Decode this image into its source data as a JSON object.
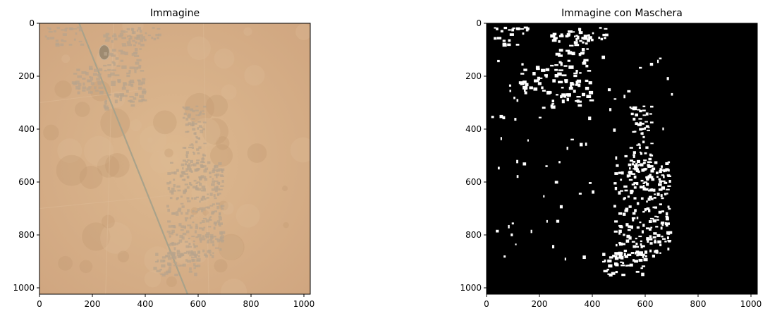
{
  "figure": {
    "panels": [
      {
        "title": "Immagine"
      },
      {
        "title": "Immagine con Maschera"
      }
    ]
  },
  "colors": {
    "sand": "#d6ad86",
    "sand_light": "#ddba95",
    "sand_dark": "#c49a73",
    "road": "#a9a28a",
    "built": "#b8a48c",
    "mask_bg": "#000000",
    "mask_fg": "#ffffff"
  },
  "chart_data": [
    {
      "type": "image",
      "title": "Immagine",
      "content": "satellite RGB image of desert terrain with settlement and diagonal road",
      "xlim": [
        0,
        1024
      ],
      "ylim": [
        1024,
        0
      ],
      "xticks": [
        0,
        200,
        400,
        600,
        800,
        1000
      ],
      "yticks": [
        0,
        200,
        400,
        600,
        800,
        1000
      ],
      "xtick_labels": [
        "0",
        "200",
        "400",
        "600",
        "800",
        "1000"
      ],
      "ytick_labels": [
        "0",
        "200",
        "400",
        "600",
        "800",
        "1000"
      ]
    },
    {
      "type": "image",
      "title": "Immagine con Maschera",
      "content": "binary building mask, white buildings on black background",
      "xlim": [
        0,
        1024
      ],
      "ylim": [
        1024,
        0
      ],
      "xticks": [
        0,
        200,
        400,
        600,
        800,
        1000
      ],
      "yticks": [
        0,
        200,
        400,
        600,
        800,
        1000
      ],
      "xtick_labels": [
        "0",
        "200",
        "400",
        "600",
        "800",
        "1000"
      ],
      "ytick_labels": [
        "0",
        "200",
        "400",
        "600",
        "800",
        "1000"
      ]
    }
  ]
}
